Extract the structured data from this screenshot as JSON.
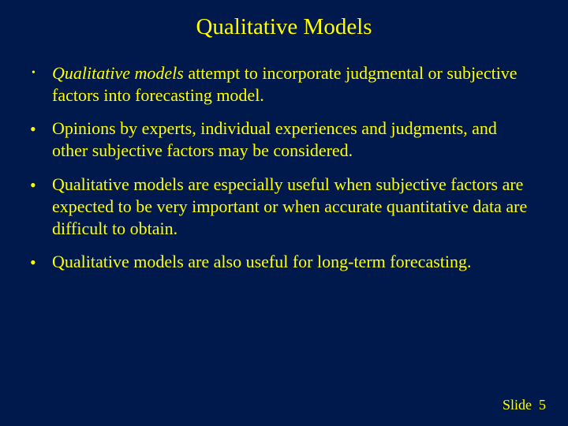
{
  "colors": {
    "background": "#00194c",
    "text": "#ffff00"
  },
  "typography": {
    "family": "Times New Roman",
    "title_fontsize": 29,
    "body_fontsize": 22,
    "footer_fontsize": 18
  },
  "slide": {
    "title": "Qualitative Models",
    "bullets": [
      {
        "marker": "small-dot",
        "lead_italic": "Qualitative models",
        "rest": " attempt to incorporate judgmental or subjective factors into forecasting model."
      },
      {
        "marker": "bullet",
        "text": "Opinions by experts, individual experiences and judgments, and other subjective factors may be considered."
      },
      {
        "marker": "bullet",
        "text": "Qualitative models are especially useful when subjective factors are expected to be very important or when accurate quantitative data are difficult to obtain."
      },
      {
        "marker": "bullet",
        "text": "Qualitative models are also useful for long-term forecasting."
      }
    ],
    "footer_label": "Slide",
    "footer_number": "5"
  }
}
